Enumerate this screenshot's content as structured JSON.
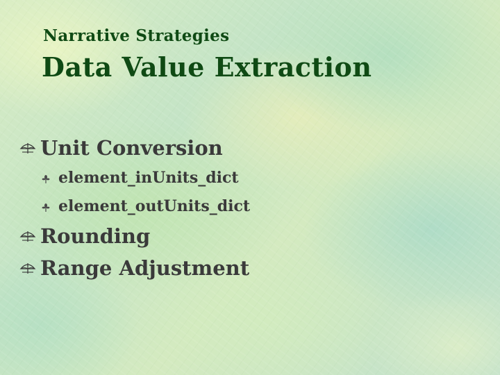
{
  "slide": {
    "subtitle": "Narrative Strategies",
    "title": "Data Value Extraction",
    "bullets": [
      {
        "label": "Unit Conversion",
        "icon": "umbrella-icon",
        "level": 1
      },
      {
        "label": "element_inUnits_dict",
        "icon": "flower-icon",
        "level": 2
      },
      {
        "label": "element_outUnits_dict",
        "icon": "flower-icon",
        "level": 2
      },
      {
        "label": "Rounding",
        "icon": "umbrella-icon",
        "level": 1
      },
      {
        "label": "Range Adjustment",
        "icon": "umbrella-icon",
        "level": 1
      }
    ]
  },
  "colors": {
    "title": "#0f4a14",
    "body_text": "#3a3a3a",
    "background": "#cfe8c4"
  }
}
